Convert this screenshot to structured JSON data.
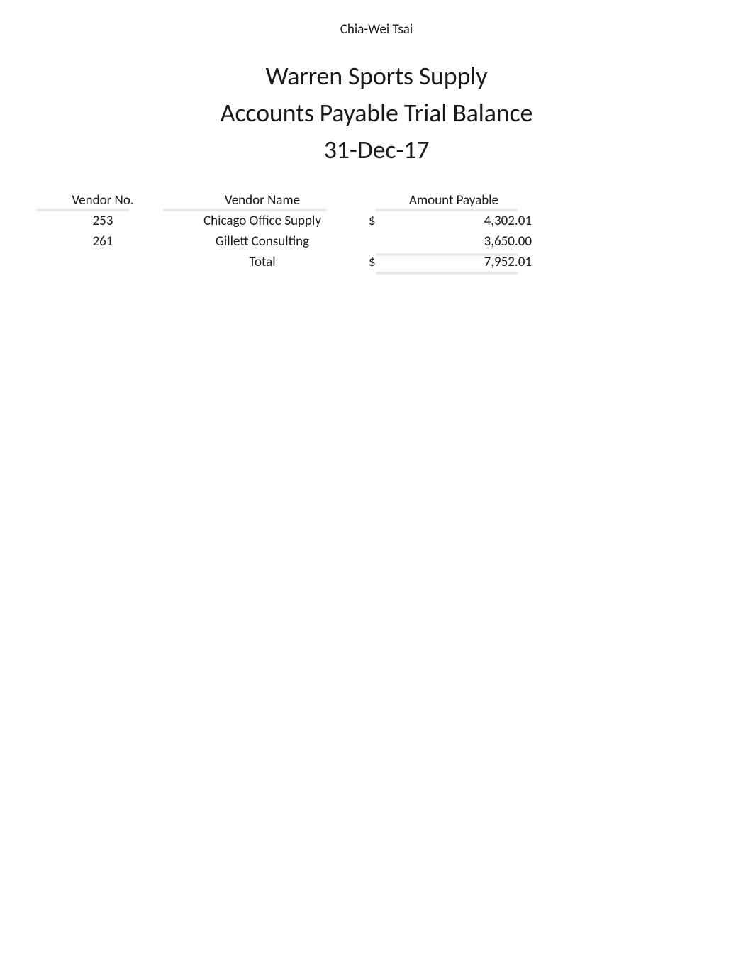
{
  "author": "Chia-Wei Tsai",
  "header": {
    "company": "Warren Sports Supply",
    "report_title": "Accounts Payable Trial Balance",
    "as_of_date": "31-Dec-17"
  },
  "table": {
    "columns": {
      "vendor_no": "Vendor No.",
      "vendor_name": "Vendor Name",
      "amount_payable": "Amount Payable"
    },
    "rows": [
      {
        "vendor_no": "253",
        "vendor_name": "Chicago Office Supply",
        "currency": "$",
        "amount": "4,302.01"
      },
      {
        "vendor_no": "261",
        "vendor_name": "Gillett Consulting",
        "currency": "",
        "amount": "3,650.00"
      }
    ],
    "total": {
      "label": "Total",
      "currency": "$",
      "amount": "7,952.01"
    }
  },
  "style": {
    "background_color": "#ffffff",
    "text_color": "#1a1a1a",
    "author_fontsize": 19,
    "header_fontsize": 36,
    "body_fontsize": 19,
    "highlight_color": "#dcdce1"
  }
}
